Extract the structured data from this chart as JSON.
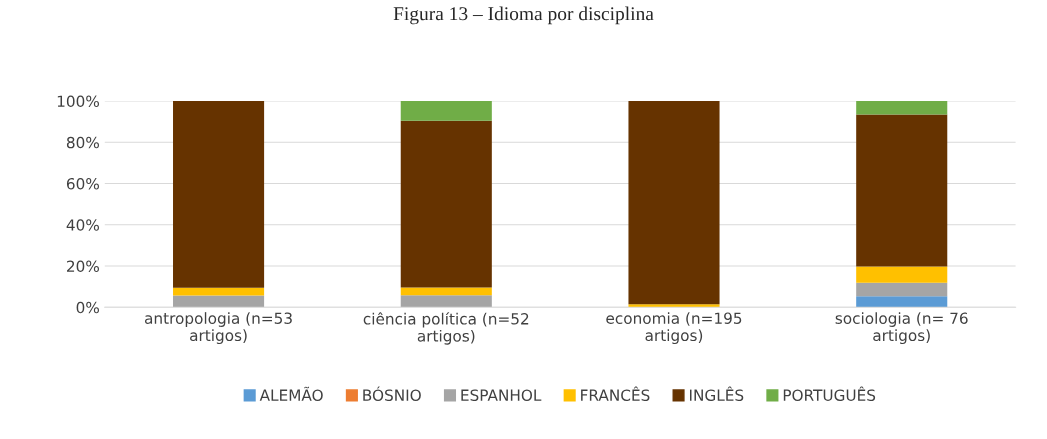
{
  "chart_data": {
    "type": "bar",
    "title": "Figura 13 – Idioma por disciplina",
    "stacked": true,
    "categories": [
      "antropologia (n=53\nartigos)",
      "ciência política (n=52\nartigos)",
      "economia (n=195\nartigos)",
      "sociologia (n= 76\nartigos)"
    ],
    "series": [
      {
        "name": "ALEMÃO",
        "color": "#5b9bd5",
        "values": [
          0,
          0,
          0,
          5.3
        ]
      },
      {
        "name": "BÓSNIO",
        "color": "#ed7d31",
        "values": [
          0,
          0,
          0,
          0
        ]
      },
      {
        "name": "ESPANHOL",
        "color": "#a5a5a5",
        "values": [
          5.7,
          5.8,
          0,
          6.6
        ]
      },
      {
        "name": "FRANCÊS",
        "color": "#ffc000",
        "values": [
          3.8,
          3.8,
          1.5,
          7.9
        ]
      },
      {
        "name": "INGLÊS",
        "color": "#663300",
        "values": [
          90.5,
          80.8,
          98.5,
          73.6
        ]
      },
      {
        "name": "PORTUGUÊS",
        "color": "#70ad47",
        "values": [
          0,
          9.6,
          0,
          6.6
        ]
      }
    ],
    "ylim": [
      0,
      100
    ],
    "yticks": [
      {
        "value": 0,
        "label": "0%"
      },
      {
        "value": 20,
        "label": "20%"
      },
      {
        "value": 40,
        "label": "40%"
      },
      {
        "value": 60,
        "label": "60%"
      },
      {
        "value": 80,
        "label": "80%"
      },
      {
        "value": 100,
        "label": "100%"
      }
    ],
    "grid": "y",
    "legend": "bottom"
  }
}
